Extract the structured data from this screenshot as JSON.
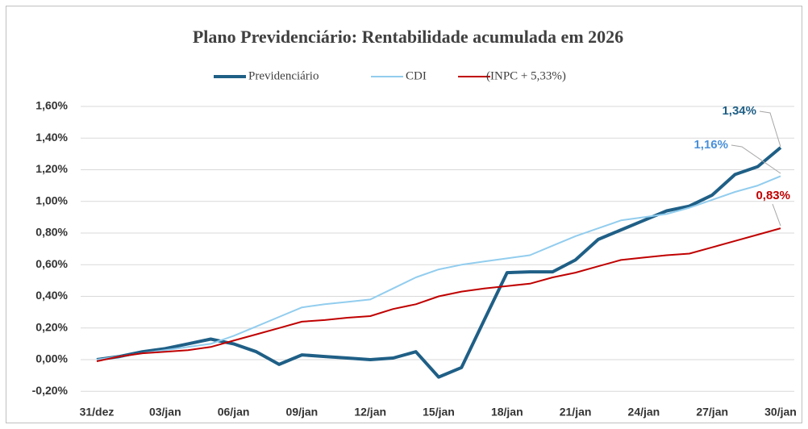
{
  "chart_data": {
    "type": "line",
    "title": "Plano Previdenciário:  Rentabilidade  acumulada  em 2026",
    "categories": [
      "31/dez",
      null,
      null,
      "03/jan",
      null,
      null,
      "06/jan",
      null,
      null,
      "09/jan",
      null,
      null,
      "12/jan",
      null,
      null,
      "15/jan",
      null,
      null,
      "18/jan",
      null,
      null,
      "21/jan",
      null,
      null,
      "24/jan",
      null,
      null,
      "27/jan",
      null,
      null,
      "30/jan"
    ],
    "series": [
      {
        "name": "Previdenciário",
        "color": "#1f5f86",
        "label_color": "#1f5f86",
        "width": 4,
        "values": [
          0.0,
          0.02,
          0.05,
          0.07,
          0.1,
          0.13,
          0.1,
          0.05,
          -0.03,
          0.03,
          0.02,
          0.01,
          0.0,
          0.01,
          0.05,
          -0.11,
          -0.05,
          0.25,
          0.55,
          0.555,
          0.555,
          0.63,
          0.76,
          0.82,
          0.88,
          0.94,
          0.97,
          1.04,
          1.17,
          1.22,
          1.34
        ],
        "value_labels": [
          null,
          null,
          null,
          null,
          null,
          null,
          null,
          null,
          null,
          null,
          null,
          null,
          null,
          null,
          null,
          null,
          null,
          null,
          null,
          null,
          null,
          null,
          null,
          null,
          null,
          null,
          null,
          null,
          null,
          null,
          "1,34%"
        ]
      },
      {
        "name": "CDI",
        "color": "#92cdee",
        "label_color": "#4a90d9",
        "width": 2,
        "values": [
          0.0,
          0.02,
          0.04,
          0.06,
          0.08,
          0.1,
          0.15,
          0.21,
          0.27,
          0.33,
          0.35,
          0.365,
          0.38,
          0.45,
          0.52,
          0.57,
          0.6,
          0.62,
          0.64,
          0.66,
          0.72,
          0.78,
          0.83,
          0.88,
          0.9,
          0.92,
          0.96,
          1.01,
          1.06,
          1.1,
          1.16
        ],
        "value_labels": [
          null,
          null,
          null,
          null,
          null,
          null,
          null,
          null,
          null,
          null,
          null,
          null,
          null,
          null,
          null,
          null,
          null,
          null,
          null,
          null,
          null,
          null,
          null,
          null,
          null,
          null,
          null,
          null,
          null,
          null,
          "1,16%"
        ]
      },
      {
        "name": "(INPC + 5,33%)",
        "color": "#c00000",
        "label_color": "#c00000",
        "width": 2,
        "values": [
          -0.01,
          0.02,
          0.04,
          0.05,
          0.06,
          0.08,
          0.12,
          0.16,
          0.2,
          0.24,
          0.25,
          0.265,
          0.275,
          0.32,
          0.35,
          0.4,
          0.43,
          0.45,
          0.465,
          0.48,
          0.52,
          0.55,
          0.59,
          0.63,
          0.645,
          0.66,
          0.67,
          0.71,
          0.75,
          0.79,
          0.83
        ],
        "value_labels": [
          null,
          null,
          null,
          null,
          null,
          null,
          null,
          null,
          null,
          null,
          null,
          null,
          null,
          null,
          null,
          null,
          null,
          null,
          null,
          null,
          null,
          null,
          null,
          null,
          null,
          null,
          null,
          null,
          null,
          null,
          "0,83%"
        ]
      }
    ],
    "ylim": [
      -0.2,
      1.6
    ],
    "yticks": [
      {
        "value": -0.2,
        "label": "-0,20%"
      },
      {
        "value": 0,
        "label": "0,00%"
      },
      {
        "value": 0.2,
        "label": "0,20%"
      },
      {
        "value": 0.4,
        "label": "0,40%"
      },
      {
        "value": 0.6,
        "label": "0,60%"
      },
      {
        "value": 0.8,
        "label": "0,80%"
      },
      {
        "value": 1.0,
        "label": "1,00%"
      },
      {
        "value": 1.2,
        "label": "1,20%"
      },
      {
        "value": 1.4,
        "label": "1,40%"
      },
      {
        "value": 1.6,
        "label": "1,60%"
      }
    ],
    "grid": true,
    "legend": "top"
  }
}
